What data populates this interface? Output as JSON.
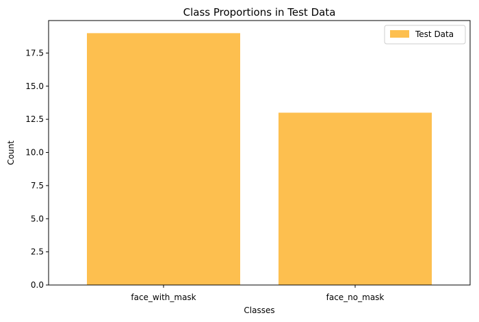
{
  "chart_data": {
    "type": "bar",
    "title": "Class Proportions in Test Data",
    "xlabel": "Classes",
    "ylabel": "Count",
    "categories": [
      "face_with_mask",
      "face_no_mask"
    ],
    "series": [
      {
        "name": "Test Data",
        "values": [
          19,
          13
        ],
        "color": "#FDBF4F"
      }
    ],
    "ylim": [
      0,
      19.95
    ],
    "yticks": [
      0.0,
      2.5,
      5.0,
      7.5,
      10.0,
      12.5,
      15.0,
      17.5
    ],
    "ytick_labels": [
      "0.0",
      "2.5",
      "5.0",
      "7.5",
      "10.0",
      "12.5",
      "15.0",
      "17.5"
    ],
    "grid": false,
    "legend_position": "top-right"
  }
}
